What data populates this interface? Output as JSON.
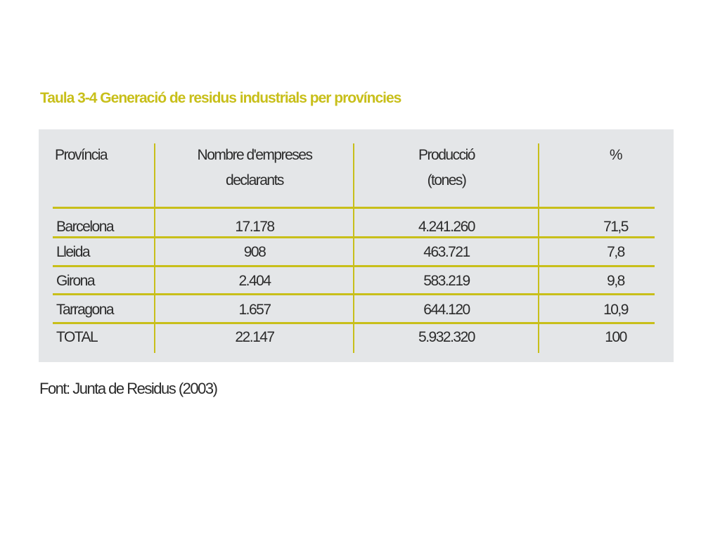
{
  "title": "Taula 3-4 Generació de residus industrials per províncies",
  "headers": {
    "provincia": "Província",
    "empreses_line1": "Nombre d'empreses",
    "empreses_line2": "declarants",
    "produccio_line1": "Producció",
    "produccio_line2": "(tones)",
    "percent": "%"
  },
  "rows": [
    {
      "provincia": "Barcelona",
      "empreses": "17.178",
      "produccio": "4.241.260",
      "percent": "71,5"
    },
    {
      "provincia": "Lleida",
      "empreses": "908",
      "produccio": "463.721",
      "percent": "7,8"
    },
    {
      "provincia": "Girona",
      "empreses": "2.404",
      "produccio": "583.219",
      "percent": "9,8"
    },
    {
      "provincia": "Tarragona",
      "empreses": "1.657",
      "produccio": "644.120",
      "percent": "10,9"
    },
    {
      "provincia": "TOTAL",
      "empreses": "22.147",
      "produccio": "5.932.320",
      "percent": "100"
    }
  ],
  "source": "Font: Junta de Residus (2003)",
  "colors": {
    "accent": "#c8bf1a",
    "panel": "#e4e6e8",
    "text": "#2b2b2b"
  }
}
